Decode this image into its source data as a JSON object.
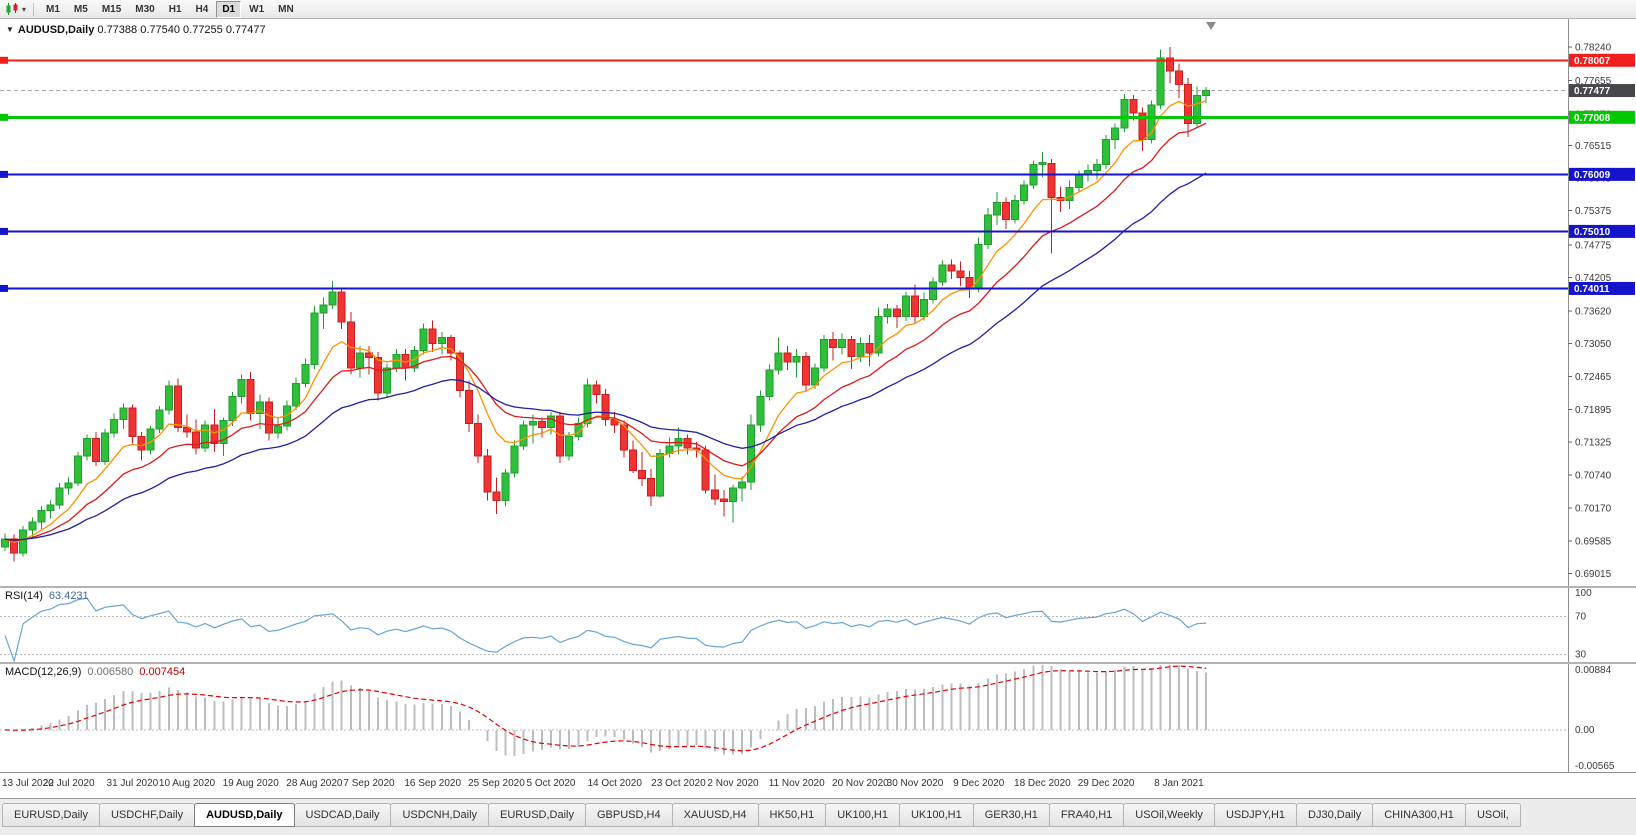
{
  "toolbar": {
    "timeframes": [
      "M1",
      "M5",
      "M15",
      "M30",
      "H1",
      "H4",
      "D1",
      "W1",
      "MN"
    ],
    "active_timeframe": "D1",
    "chart_type_icon": "candlestick-chart-icon",
    "dropdown_marker": "▾"
  },
  "chart": {
    "marker": "▼",
    "title": "AUDUSD,Daily",
    "ohlc": "0.77388 0.77540 0.77255 0.77477"
  },
  "indicators": {
    "rsi": {
      "label": "RSI(14)",
      "value": "63.4231",
      "levels": [
        70,
        30
      ],
      "top_label": "100",
      "axis_labels": [
        "100",
        "70",
        "30"
      ]
    },
    "macd": {
      "label": "MACD(12,26,9)",
      "main_value": "0.006580",
      "signal_value": "0.007454",
      "axis_labels": [
        "0.00884",
        "0.00",
        "-0.00565"
      ]
    }
  },
  "tabs": {
    "active_index": 2,
    "items": [
      "EURUSD,Daily",
      "USDCHF,Daily",
      "AUDUSD,Daily",
      "USDCAD,Daily",
      "USDCNH,Daily",
      "EURUSD,Daily",
      "GBPUSD,H4",
      "XAUUSD,H4",
      "HK50,H1",
      "UK100,H1",
      "UK100,H1",
      "GER30,H1",
      "FRA40,H1",
      "USOil,Weekly",
      "USDJPY,H1",
      "DJ30,Daily",
      "CHINA300,H1",
      "USOil,"
    ]
  },
  "colors": {
    "bull_fill": "#2fbf3a",
    "bull_stroke": "#1e9e2c",
    "bear_fill": "#f03333",
    "bear_stroke": "#c81e1e",
    "ma_fast": "#ff9100",
    "ma_mid": "#d91c1c",
    "ma_slow": "#2020a0",
    "rsi_line": "#67a3d9",
    "macd_hist": "#bdbdbd",
    "macd_signal": "#e00000",
    "axis_text": "#3a3a3a",
    "level_dotted": "#bcbcbc"
  },
  "chart_data": {
    "type": "candlestick",
    "symbol": "AUDUSD",
    "timeframe": "Daily",
    "last_ohlc": {
      "open": 0.77388,
      "high": 0.7754,
      "low": 0.77255,
      "close": 0.77477
    },
    "price_range": [
      0.688,
      0.7873
    ],
    "price_ticks": [
      "0.78240",
      "0.77655",
      "0.77070",
      "0.76515",
      "0.75945",
      "0.75375",
      "0.74775",
      "0.74205",
      "0.73620",
      "0.73050",
      "0.72465",
      "0.71895",
      "0.71325",
      "0.70740",
      "0.70170",
      "0.69585",
      "0.69015"
    ],
    "levels": [
      {
        "label": "0.78007",
        "value": 0.78007,
        "box": "#f21d1d",
        "line": "#f21d1d",
        "width": 2,
        "dash": "",
        "name": "resistance-line",
        "left_marker": true
      },
      {
        "label": "0.77477",
        "value": 0.77477,
        "box": "#46464b",
        "line": "#aaaaaa",
        "width": 1,
        "dash": "4,3",
        "name": "current-price-line",
        "left_marker": false
      },
      {
        "label": "0.77008",
        "value": 0.77008,
        "box": "#00c800",
        "line": "#00c800",
        "width": 3,
        "dash": "",
        "name": "support-line-1",
        "left_marker": true
      },
      {
        "label": "0.76009",
        "value": 0.76009,
        "box": "#1414cc",
        "line": "#1414cc",
        "width": 2,
        "dash": "",
        "name": "support-line-2",
        "left_marker": true
      },
      {
        "label": "0.75010",
        "value": 0.7501,
        "box": "#1414cc",
        "line": "#1414cc",
        "width": 2,
        "dash": "",
        "name": "support-line-3",
        "left_marker": true
      },
      {
        "label": "0.74011",
        "value": 0.74011,
        "box": "#1414cc",
        "line": "#1414cc",
        "width": 2,
        "dash": "",
        "name": "support-line-4",
        "left_marker": true
      }
    ],
    "moving_averages": [
      {
        "period": 8,
        "method": "ema",
        "color_key": "ma_fast"
      },
      {
        "period": 16,
        "method": "ema",
        "color_key": "ma_mid"
      },
      {
        "period": 32,
        "method": "ema",
        "color_key": "ma_slow"
      }
    ],
    "rsi": {
      "period": 14,
      "current": 63.4231,
      "panel_range": [
        22,
        100
      ],
      "levels": [
        70,
        30
      ]
    },
    "macd": {
      "fast": 12,
      "slow": 26,
      "signal": 9,
      "panel_range": [
        -0.00565,
        0.00884
      ],
      "current_main": 0.00658,
      "current_signal": 0.007454
    },
    "time_labels": [
      {
        "i": 0,
        "t": "13 Jul 2020"
      },
      {
        "i": 7,
        "t": "22 Jul 2020"
      },
      {
        "i": 14,
        "t": "31 Jul 2020"
      },
      {
        "i": 20,
        "t": "10 Aug 2020"
      },
      {
        "i": 27,
        "t": "19 Aug 2020"
      },
      {
        "i": 34,
        "t": "28 Aug 2020"
      },
      {
        "i": 40,
        "t": "7 Sep 2020"
      },
      {
        "i": 47,
        "t": "16 Sep 2020"
      },
      {
        "i": 54,
        "t": "25 Sep 2020"
      },
      {
        "i": 60,
        "t": "5 Oct 2020"
      },
      {
        "i": 67,
        "t": "14 Oct 2020"
      },
      {
        "i": 74,
        "t": "23 Oct 2020"
      },
      {
        "i": 80,
        "t": "2 Nov 2020"
      },
      {
        "i": 87,
        "t": "11 Nov 2020"
      },
      {
        "i": 94,
        "t": "20 Nov 2020"
      },
      {
        "i": 100,
        "t": "30 Nov 2020"
      },
      {
        "i": 107,
        "t": "9 Dec 2020"
      },
      {
        "i": 114,
        "t": "18 Dec 2020"
      },
      {
        "i": 121,
        "t": "29 Dec 2020"
      },
      {
        "i": 129,
        "t": "8 Jan 2021"
      }
    ],
    "candles": [
      [
        0.6948,
        0.6972,
        0.6941,
        0.6962
      ],
      [
        0.6962,
        0.697,
        0.6923,
        0.6938
      ],
      [
        0.6938,
        0.6985,
        0.6932,
        0.6978
      ],
      [
        0.6978,
        0.7,
        0.6965,
        0.6992
      ],
      [
        0.6992,
        0.702,
        0.698,
        0.7012
      ],
      [
        0.7012,
        0.703,
        0.6998,
        0.7022
      ],
      [
        0.7022,
        0.706,
        0.7015,
        0.7052
      ],
      [
        0.7052,
        0.707,
        0.704,
        0.706
      ],
      [
        0.706,
        0.7115,
        0.7055,
        0.7108
      ],
      [
        0.7108,
        0.7145,
        0.71,
        0.7138
      ],
      [
        0.7138,
        0.715,
        0.709,
        0.7098
      ],
      [
        0.7098,
        0.7155,
        0.7092,
        0.7148
      ],
      [
        0.7148,
        0.7182,
        0.714,
        0.7172
      ],
      [
        0.7172,
        0.72,
        0.7155,
        0.7192
      ],
      [
        0.7192,
        0.7198,
        0.713,
        0.7142
      ],
      [
        0.7142,
        0.715,
        0.71,
        0.7118
      ],
      [
        0.7118,
        0.716,
        0.711,
        0.7155
      ],
      [
        0.7155,
        0.7195,
        0.7148,
        0.7188
      ],
      [
        0.7188,
        0.724,
        0.718,
        0.723
      ],
      [
        0.723,
        0.7243,
        0.715,
        0.7158
      ],
      [
        0.7158,
        0.718,
        0.714,
        0.715
      ],
      [
        0.715,
        0.7172,
        0.711,
        0.7122
      ],
      [
        0.7122,
        0.717,
        0.7115,
        0.7162
      ],
      [
        0.7162,
        0.719,
        0.7115,
        0.713
      ],
      [
        0.713,
        0.7175,
        0.7108,
        0.717
      ],
      [
        0.717,
        0.722,
        0.716,
        0.7212
      ],
      [
        0.7212,
        0.725,
        0.72,
        0.7242
      ],
      [
        0.7242,
        0.7255,
        0.717,
        0.7182
      ],
      [
        0.7182,
        0.7215,
        0.7155,
        0.7202
      ],
      [
        0.7202,
        0.721,
        0.7135,
        0.7148
      ],
      [
        0.7148,
        0.7175,
        0.7138,
        0.716
      ],
      [
        0.716,
        0.7205,
        0.7152,
        0.7195
      ],
      [
        0.7195,
        0.7245,
        0.7188,
        0.7235
      ],
      [
        0.7235,
        0.7278,
        0.7228,
        0.7268
      ],
      [
        0.7268,
        0.737,
        0.726,
        0.7358
      ],
      [
        0.7358,
        0.7385,
        0.733,
        0.7372
      ],
      [
        0.7372,
        0.7414,
        0.7365,
        0.7395
      ],
      [
        0.7395,
        0.74,
        0.733,
        0.7342
      ],
      [
        0.7342,
        0.736,
        0.725,
        0.7262
      ],
      [
        0.7262,
        0.73,
        0.7245,
        0.7288
      ],
      [
        0.7288,
        0.73,
        0.725,
        0.728
      ],
      [
        0.728,
        0.729,
        0.7205,
        0.7218
      ],
      [
        0.7218,
        0.727,
        0.721,
        0.7262
      ],
      [
        0.7262,
        0.7295,
        0.7255,
        0.7285
      ],
      [
        0.7285,
        0.7295,
        0.724,
        0.7262
      ],
      [
        0.7262,
        0.73,
        0.7255,
        0.7292
      ],
      [
        0.7292,
        0.734,
        0.7285,
        0.733
      ],
      [
        0.733,
        0.7345,
        0.729,
        0.7305
      ],
      [
        0.7305,
        0.7325,
        0.7285,
        0.7315
      ],
      [
        0.7315,
        0.732,
        0.7275,
        0.7288
      ],
      [
        0.7288,
        0.7292,
        0.721,
        0.7222
      ],
      [
        0.7222,
        0.724,
        0.715,
        0.7165
      ],
      [
        0.7165,
        0.718,
        0.7095,
        0.7108
      ],
      [
        0.7108,
        0.712,
        0.703,
        0.7045
      ],
      [
        0.7045,
        0.707,
        0.7006,
        0.703
      ],
      [
        0.703,
        0.7085,
        0.702,
        0.7078
      ],
      [
        0.7078,
        0.7135,
        0.707,
        0.7125
      ],
      [
        0.7125,
        0.717,
        0.7118,
        0.7162
      ],
      [
        0.7162,
        0.718,
        0.713,
        0.7168
      ],
      [
        0.7168,
        0.7175,
        0.714,
        0.7158
      ],
      [
        0.7158,
        0.7185,
        0.7145,
        0.7178
      ],
      [
        0.7178,
        0.7185,
        0.7095,
        0.7108
      ],
      [
        0.7108,
        0.715,
        0.71,
        0.7142
      ],
      [
        0.7142,
        0.7175,
        0.7135,
        0.7165
      ],
      [
        0.7165,
        0.7243,
        0.7158,
        0.7232
      ],
      [
        0.7232,
        0.724,
        0.72,
        0.7215
      ],
      [
        0.7215,
        0.7225,
        0.716,
        0.7172
      ],
      [
        0.7172,
        0.7185,
        0.7148,
        0.7162
      ],
      [
        0.7162,
        0.717,
        0.7105,
        0.7118
      ],
      [
        0.7118,
        0.7135,
        0.7078,
        0.7082
      ],
      [
        0.7082,
        0.7115,
        0.7055,
        0.7068
      ],
      [
        0.7068,
        0.7085,
        0.702,
        0.7038
      ],
      [
        0.7038,
        0.712,
        0.7035,
        0.7112
      ],
      [
        0.7112,
        0.714,
        0.7105,
        0.7125
      ],
      [
        0.7125,
        0.7158,
        0.711,
        0.7138
      ],
      [
        0.7138,
        0.7145,
        0.711,
        0.7122
      ],
      [
        0.7122,
        0.7132,
        0.7105,
        0.7118
      ],
      [
        0.7118,
        0.7125,
        0.7042,
        0.7048
      ],
      [
        0.7048,
        0.7075,
        0.7022,
        0.7032
      ],
      [
        0.7032,
        0.7048,
        0.7002,
        0.7028
      ],
      [
        0.7028,
        0.7058,
        0.6991,
        0.7052
      ],
      [
        0.7052,
        0.7072,
        0.7028,
        0.7062
      ],
      [
        0.7062,
        0.718,
        0.7048,
        0.7162
      ],
      [
        0.7162,
        0.7222,
        0.715,
        0.7212
      ],
      [
        0.7212,
        0.7268,
        0.7205,
        0.7258
      ],
      [
        0.7258,
        0.7315,
        0.725,
        0.7288
      ],
      [
        0.7288,
        0.73,
        0.7258,
        0.7272
      ],
      [
        0.7272,
        0.7295,
        0.7245,
        0.7282
      ],
      [
        0.7282,
        0.729,
        0.7222,
        0.7232
      ],
      [
        0.7232,
        0.727,
        0.7225,
        0.7262
      ],
      [
        0.7262,
        0.732,
        0.7255,
        0.7312
      ],
      [
        0.7312,
        0.7325,
        0.7275,
        0.7298
      ],
      [
        0.7298,
        0.7322,
        0.7285,
        0.7312
      ],
      [
        0.7312,
        0.7318,
        0.726,
        0.7282
      ],
      [
        0.7282,
        0.7315,
        0.7272,
        0.7305
      ],
      [
        0.7305,
        0.732,
        0.7265,
        0.7288
      ],
      [
        0.7288,
        0.7368,
        0.7282,
        0.7352
      ],
      [
        0.7352,
        0.7374,
        0.734,
        0.7365
      ],
      [
        0.7365,
        0.7372,
        0.7332,
        0.7352
      ],
      [
        0.7352,
        0.7395,
        0.7344,
        0.7388
      ],
      [
        0.7388,
        0.7408,
        0.734,
        0.7352
      ],
      [
        0.7352,
        0.7394,
        0.7345,
        0.7382
      ],
      [
        0.7382,
        0.742,
        0.7375,
        0.7412
      ],
      [
        0.7412,
        0.745,
        0.7405,
        0.7442
      ],
      [
        0.7442,
        0.7452,
        0.7418,
        0.7432
      ],
      [
        0.7432,
        0.7448,
        0.7405,
        0.742
      ],
      [
        0.742,
        0.7432,
        0.7384,
        0.7402
      ],
      [
        0.7402,
        0.749,
        0.7395,
        0.7478
      ],
      [
        0.7478,
        0.7542,
        0.747,
        0.753
      ],
      [
        0.753,
        0.757,
        0.7512,
        0.7552
      ],
      [
        0.7552,
        0.756,
        0.7505,
        0.7522
      ],
      [
        0.7522,
        0.7565,
        0.7515,
        0.7555
      ],
      [
        0.7555,
        0.759,
        0.7548,
        0.7582
      ],
      [
        0.7582,
        0.7625,
        0.7575,
        0.7618
      ],
      [
        0.7618,
        0.764,
        0.7595,
        0.7622
      ],
      [
        0.762,
        0.7628,
        0.7462,
        0.756
      ],
      [
        0.756,
        0.758,
        0.7535,
        0.7555
      ],
      [
        0.7555,
        0.759,
        0.754,
        0.7578
      ],
      [
        0.7578,
        0.7608,
        0.757,
        0.76
      ],
      [
        0.76,
        0.7618,
        0.7588,
        0.7608
      ],
      [
        0.7608,
        0.7628,
        0.7592,
        0.7618
      ],
      [
        0.7618,
        0.767,
        0.761,
        0.7662
      ],
      [
        0.7662,
        0.769,
        0.7645,
        0.7682
      ],
      [
        0.7682,
        0.7742,
        0.7675,
        0.7732
      ],
      [
        0.7732,
        0.774,
        0.7695,
        0.7708
      ],
      [
        0.7708,
        0.7718,
        0.7642,
        0.7662
      ],
      [
        0.7662,
        0.773,
        0.7655,
        0.7722
      ],
      [
        0.7722,
        0.782,
        0.7715,
        0.7805
      ],
      [
        0.7805,
        0.7824,
        0.776,
        0.7782
      ],
      [
        0.7782,
        0.7795,
        0.7735,
        0.7758
      ],
      [
        0.7758,
        0.777,
        0.7666,
        0.769
      ],
      [
        0.769,
        0.7755,
        0.7685,
        0.7739
      ],
      [
        0.77388,
        0.7754,
        0.77255,
        0.77477
      ]
    ]
  }
}
